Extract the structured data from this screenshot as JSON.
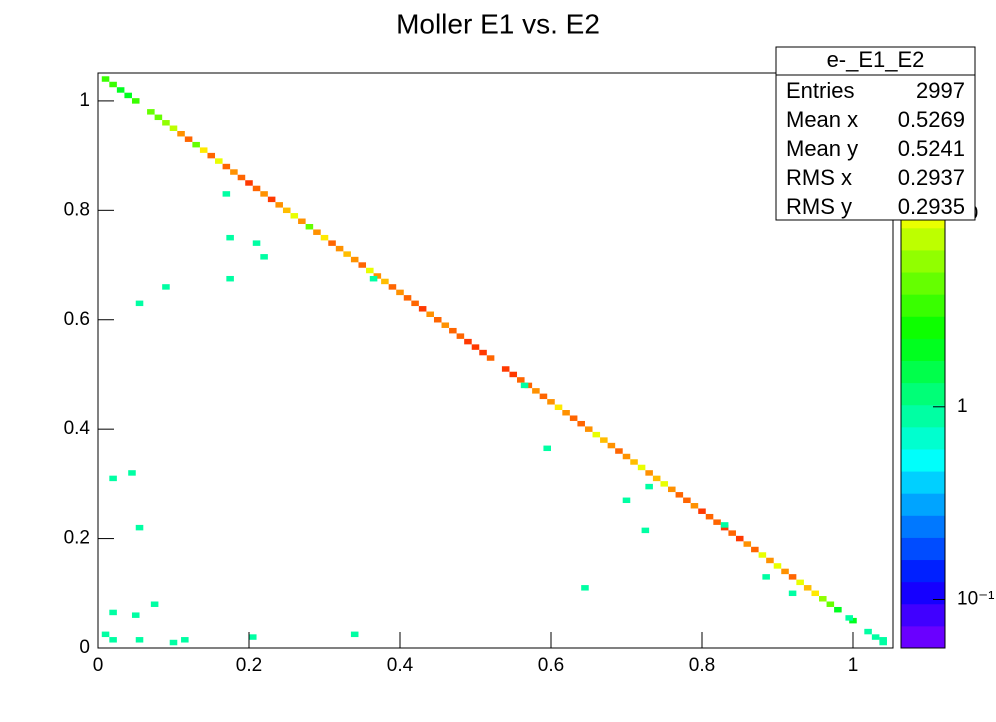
{
  "chart_data": {
    "type": "heatmap",
    "title": "Moller E1 vs. E2",
    "xlim": [
      0,
      1.053
    ],
    "ylim": [
      0,
      1.051
    ],
    "xticks": [
      0,
      0.2,
      0.4,
      0.6,
      0.8,
      1
    ],
    "yticks": [
      0,
      0.2,
      0.4,
      0.6,
      0.8,
      1
    ],
    "log_z": true,
    "zlim": [
      0.056,
      54
    ],
    "zticks": [
      {
        "value": 0.1,
        "label": "10⁻¹"
      },
      1,
      10
    ],
    "palette": [
      "#6a00ff",
      "#4000ff",
      "#1500ff",
      "#0020ff",
      "#004cff",
      "#0078ff",
      "#00a4ff",
      "#00d0ff",
      "#00fffb",
      "#00ffcf",
      "#00ffa3",
      "#00ff77",
      "#00ff4b",
      "#00ff1f",
      "#0dff00",
      "#39ff00",
      "#65ff00",
      "#91ff00",
      "#bdff00",
      "#e9ff00",
      "#ffe900",
      "#ffbd00",
      "#ff9100",
      "#ff6500",
      "#ff3900",
      "#ff0000"
    ],
    "cells": {
      "x": [
        0.01,
        0.02,
        0.03,
        0.04,
        0.05,
        0.07,
        0.08,
        0.09,
        0.1,
        0.11,
        0.12,
        0.13,
        0.14,
        0.15,
        0.16,
        0.17,
        0.18,
        0.19,
        0.2,
        0.21,
        0.22,
        0.23,
        0.24,
        0.25,
        0.26,
        0.27,
        0.28,
        0.29,
        0.3,
        0.31,
        0.32,
        0.33,
        0.34,
        0.35,
        0.36,
        0.37,
        0.38,
        0.39,
        0.4,
        0.41,
        0.42,
        0.43,
        0.44,
        0.45,
        0.46,
        0.47,
        0.48,
        0.49,
        0.5,
        0.51,
        0.52,
        0.54,
        0.55,
        0.56,
        0.57,
        0.58,
        0.59,
        0.6,
        0.61,
        0.62,
        0.63,
        0.64,
        0.65,
        0.66,
        0.67,
        0.68,
        0.69,
        0.7,
        0.71,
        0.72,
        0.73,
        0.74,
        0.75,
        0.76,
        0.77,
        0.78,
        0.79,
        0.8,
        0.81,
        0.82,
        0.83,
        0.84,
        0.85,
        0.86,
        0.87,
        0.88,
        0.89,
        0.9,
        0.91,
        0.92,
        0.93,
        0.94,
        0.95,
        0.96,
        0.97,
        0.98,
        1.0,
        1.02,
        1.03,
        1.04,
        0.02,
        0.045,
        0.055,
        0.055,
        0.09,
        0.17,
        0.175,
        0.175,
        0.21,
        0.22,
        0.365,
        0.565,
        0.595,
        0.645,
        0.7,
        0.725,
        0.73,
        0.83,
        0.885,
        0.92,
        0.01,
        0.02,
        0.02,
        0.05,
        0.055,
        0.075,
        0.1,
        0.115,
        0.205,
        0.34,
        0.995,
        1.04
      ],
      "y": [
        1.04,
        1.03,
        1.02,
        1.01,
        1.0,
        0.98,
        0.97,
        0.96,
        0.95,
        0.94,
        0.93,
        0.92,
        0.91,
        0.9,
        0.89,
        0.88,
        0.87,
        0.86,
        0.85,
        0.84,
        0.83,
        0.82,
        0.81,
        0.8,
        0.79,
        0.78,
        0.77,
        0.76,
        0.75,
        0.74,
        0.73,
        0.72,
        0.71,
        0.7,
        0.69,
        0.68,
        0.67,
        0.66,
        0.65,
        0.64,
        0.63,
        0.62,
        0.61,
        0.6,
        0.59,
        0.58,
        0.57,
        0.56,
        0.55,
        0.54,
        0.53,
        0.51,
        0.5,
        0.49,
        0.48,
        0.47,
        0.46,
        0.45,
        0.44,
        0.43,
        0.42,
        0.41,
        0.4,
        0.39,
        0.38,
        0.37,
        0.36,
        0.35,
        0.34,
        0.33,
        0.32,
        0.31,
        0.3,
        0.29,
        0.28,
        0.27,
        0.26,
        0.25,
        0.24,
        0.23,
        0.22,
        0.21,
        0.2,
        0.19,
        0.18,
        0.17,
        0.16,
        0.15,
        0.14,
        0.13,
        0.12,
        0.11,
        0.1,
        0.09,
        0.08,
        0.07,
        0.05,
        0.03,
        0.02,
        0.01,
        0.31,
        0.32,
        0.22,
        0.63,
        0.66,
        0.83,
        0.75,
        0.675,
        0.74,
        0.715,
        0.675,
        0.48,
        0.365,
        0.11,
        0.27,
        0.215,
        0.295,
        0.225,
        0.13,
        0.1,
        0.025,
        0.065,
        0.015,
        0.06,
        0.015,
        0.08,
        0.01,
        0.015,
        0.02,
        0.025,
        0.055,
        0.015
      ],
      "z": [
        3,
        3,
        2,
        2,
        3,
        4,
        5,
        6,
        8,
        20,
        30,
        5,
        12,
        25,
        9,
        30,
        20,
        30,
        40,
        30,
        20,
        35,
        20,
        15,
        9,
        20,
        5,
        20,
        12,
        25,
        20,
        15,
        20,
        25,
        9,
        20,
        15,
        30,
        20,
        30,
        25,
        40,
        20,
        30,
        20,
        25,
        30,
        40,
        35,
        40,
        30,
        40,
        35,
        30,
        25,
        20,
        30,
        20,
        12,
        20,
        25,
        30,
        20,
        9,
        15,
        20,
        25,
        20,
        15,
        9,
        20,
        15,
        9,
        20,
        25,
        30,
        20,
        35,
        30,
        25,
        40,
        30,
        35,
        20,
        30,
        9,
        20,
        9,
        20,
        25,
        9,
        15,
        12,
        6,
        4,
        2,
        2,
        1,
        1,
        1,
        1,
        1,
        1,
        1,
        1,
        1,
        1,
        1,
        1,
        1,
        1,
        1,
        1,
        1,
        1,
        1,
        1,
        1,
        1,
        1,
        1,
        1,
        1,
        1,
        1,
        1,
        1,
        1,
        1,
        1,
        1,
        1
      ]
    },
    "stats": {
      "title": "e-_E1_E2",
      "rows": [
        {
          "label": "Entries",
          "value": 2997
        },
        {
          "label": "Mean x",
          "value": 0.5269
        },
        {
          "label": "Mean y",
          "value": 0.5241
        },
        {
          "label": "RMS x",
          "value": 0.2937
        },
        {
          "label": "RMS y",
          "value": 0.2935
        }
      ]
    }
  }
}
